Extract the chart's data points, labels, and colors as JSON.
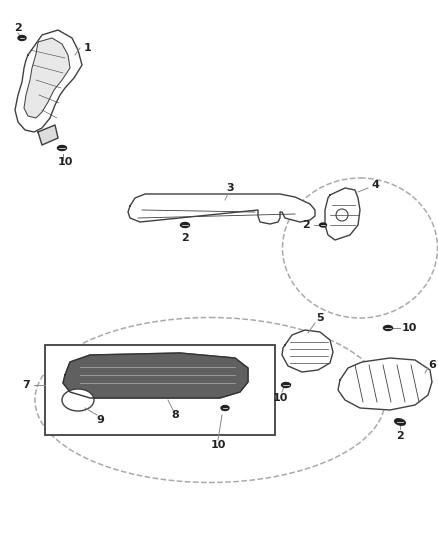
{
  "bg_color": "#ffffff",
  "line_color": "#404040",
  "label_color": "#222222",
  "dash_color": "#aaaaaa",
  "dark_gray": "#555555",
  "mid_gray": "#888888",
  "light_gray": "#cccccc",
  "figsize": [
    4.38,
    5.33
  ],
  "dpi": 100
}
